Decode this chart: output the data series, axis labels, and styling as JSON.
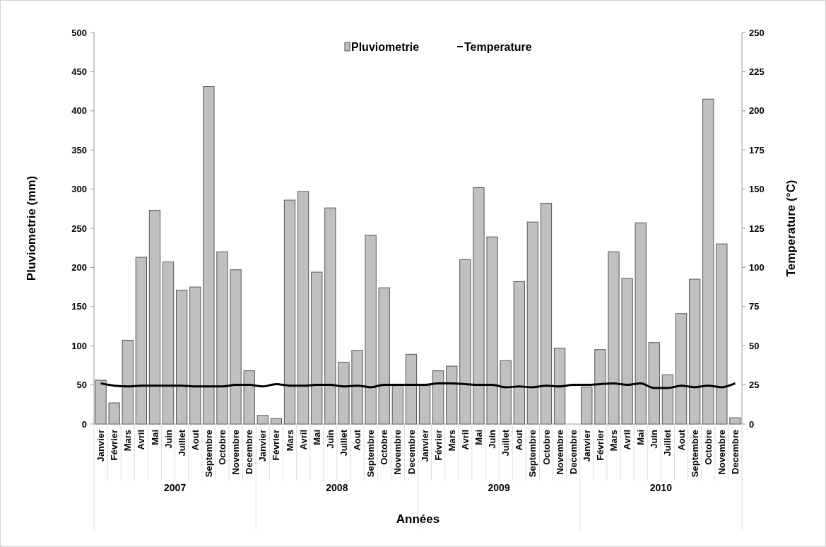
{
  "chart_data": {
    "type": "bar",
    "xlabel": "Années",
    "ylabel": "Pluviometrie (mm)",
    "y2label": "Temperature (°C)",
    "categories": [
      "Janvier",
      "Février",
      "Mars",
      "Avril",
      "Mai",
      "Juin",
      "Juillet",
      "Aout",
      "Septembre",
      "Octobre",
      "Novembre",
      "Decembre",
      "Janvier",
      "Février",
      "Mars",
      "Avril",
      "Mai",
      "Juin",
      "Juillet",
      "Aout",
      "Septembre",
      "Octobre",
      "Novembre",
      "Decembre",
      "Janvier",
      "Février",
      "Mars",
      "Avril",
      "Mai",
      "Juin",
      "Juillet",
      "Aout",
      "Septembre",
      "Octobre",
      "Novembre",
      "Decembre",
      "Janvier",
      "Février",
      "Mars",
      "Avril",
      "Mai",
      "Juin",
      "Juillet",
      "Aout",
      "Septembre",
      "Octobre",
      "Novembre",
      "Decembre"
    ],
    "series": [
      {
        "name": "Pluviometrie",
        "color": "#c0c0c0",
        "values": [
          56,
          27,
          107,
          213,
          273,
          207,
          171,
          175,
          431,
          220,
          197,
          68,
          11,
          7,
          286,
          297,
          194,
          276,
          79,
          94,
          241,
          174,
          50,
          89,
          50,
          68,
          74,
          210,
          302,
          239,
          81,
          182,
          258,
          282,
          97,
          0,
          47,
          95,
          220,
          186,
          257,
          104,
          63,
          141,
          185,
          415,
          230,
          8
        ]
      },
      {
        "name": "Temperature",
        "type": "line",
        "axis": "y2",
        "color": "#000000",
        "values": [
          26,
          24.5,
          24,
          24.5,
          24.5,
          24.5,
          24.5,
          24,
          24,
          24,
          25,
          25,
          24,
          25.5,
          24.5,
          24.5,
          25,
          25,
          24,
          24.5,
          23.5,
          25,
          25,
          25,
          25,
          26,
          26,
          25.5,
          25,
          25,
          23.5,
          24,
          23.5,
          24.5,
          24,
          25,
          25,
          25.5,
          26,
          25,
          26,
          23,
          23,
          24.5,
          23.5,
          24.5,
          23.5,
          26
        ]
      }
    ],
    "ylim": [
      0,
      500
    ],
    "yticks": [
      0,
      50,
      100,
      150,
      200,
      250,
      300,
      350,
      400,
      450,
      500
    ],
    "y2lim": [
      0,
      250
    ],
    "y2ticks": [
      0,
      25,
      50,
      75,
      100,
      125,
      150,
      175,
      200,
      225,
      250
    ],
    "annotations": [
      "2007",
      "2008",
      "2009",
      "2010"
    ],
    "legend": "top",
    "grid": false,
    "marker": "none",
    "line_style": "solid"
  }
}
